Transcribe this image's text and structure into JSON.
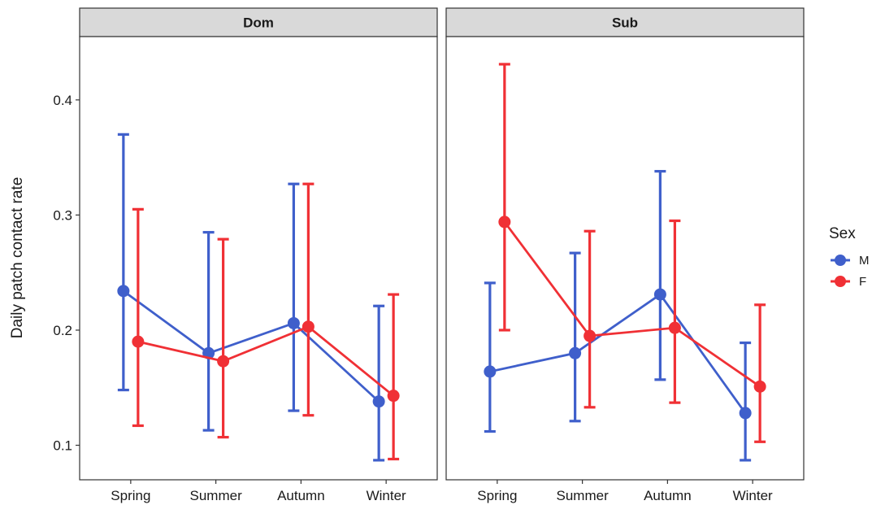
{
  "chart_data": {
    "type": "line",
    "ylabel": "Daily patch contact rate",
    "xlabel": "",
    "categories": [
      "Spring",
      "Summer",
      "Autumn",
      "Winter"
    ],
    "ylim": [
      0.07,
      0.455
    ],
    "yticks": [
      0.1,
      0.2,
      0.3,
      0.4
    ],
    "ytick_labels": [
      "0.1",
      "0.2",
      "0.3",
      "0.4"
    ],
    "grid": false,
    "legend": {
      "title": "Sex",
      "placement": "right"
    },
    "panels": [
      {
        "title": "Dom",
        "series": [
          {
            "name": "M",
            "color": "#3F5FCB",
            "values": [
              0.234,
              0.18,
              0.206,
              0.138
            ],
            "lower": [
              0.148,
              0.113,
              0.13,
              0.087
            ],
            "upper": [
              0.37,
              0.285,
              0.327,
              0.221
            ]
          },
          {
            "name": "F",
            "color": "#F03035",
            "values": [
              0.19,
              0.173,
              0.203,
              0.143
            ],
            "lower": [
              0.117,
              0.107,
              0.126,
              0.088
            ],
            "upper": [
              0.305,
              0.279,
              0.327,
              0.231
            ]
          }
        ]
      },
      {
        "title": "Sub",
        "series": [
          {
            "name": "M",
            "color": "#3F5FCB",
            "values": [
              0.164,
              0.18,
              0.231,
              0.128
            ],
            "lower": [
              0.112,
              0.121,
              0.157,
              0.087
            ],
            "upper": [
              0.241,
              0.267,
              0.338,
              0.189
            ]
          },
          {
            "name": "F",
            "color": "#F03035",
            "values": [
              0.294,
              0.195,
              0.202,
              0.151
            ],
            "lower": [
              0.2,
              0.133,
              0.137,
              0.103
            ],
            "upper": [
              0.431,
              0.286,
              0.295,
              0.222
            ]
          }
        ]
      }
    ]
  }
}
